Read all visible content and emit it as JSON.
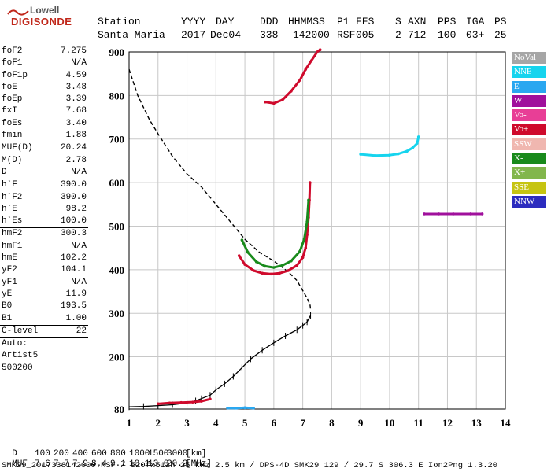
{
  "logo": {
    "top": "Lowell",
    "bottom": "DIGISONDE"
  },
  "header": {
    "labels": [
      "Station",
      "YYYY",
      "DAY",
      "DDD",
      "HHMMSS",
      "P1",
      "FFS",
      "S",
      "AXN",
      "PPS",
      "IGA",
      "PS"
    ],
    "values": [
      "Santa Maria",
      "2017",
      "Dec04",
      "338",
      "142000",
      "RSF",
      "005",
      "2",
      "712",
      "100",
      "03+",
      "25"
    ]
  },
  "params": {
    "group1": [
      [
        "foF2",
        "7.275"
      ],
      [
        "foF1",
        "N/A"
      ],
      [
        "foF1p",
        "4.59"
      ],
      [
        "foE",
        "3.48"
      ],
      [
        "foEp",
        "3.39"
      ],
      [
        "fxI",
        "7.68"
      ],
      [
        "foEs",
        "3.40"
      ],
      [
        "fmin",
        "1.88"
      ]
    ],
    "group2": [
      [
        "MUF(D)",
        "20.24"
      ],
      [
        "M(D)",
        "2.78"
      ],
      [
        "D",
        "N/A"
      ]
    ],
    "group3": [
      [
        "h`F",
        "390.0"
      ],
      [
        "h`F2",
        "390.0"
      ],
      [
        "h`E",
        "98.2"
      ],
      [
        "h`Es",
        "100.0"
      ]
    ],
    "group4": [
      [
        "hmF2",
        "300.3"
      ],
      [
        "hmF1",
        "N/A"
      ],
      [
        "hmE",
        "102.2"
      ],
      [
        "yF2",
        "104.1"
      ],
      [
        "yF1",
        "N/A"
      ],
      [
        "yE",
        "11.9"
      ],
      [
        "B0",
        "193.5"
      ],
      [
        "B1",
        "1.00"
      ]
    ],
    "clevel": [
      "C-level",
      "22"
    ],
    "auto": [
      "Auto:",
      "Artist5",
      "500200"
    ]
  },
  "legend": [
    {
      "label": "NoVal",
      "color": "#a6a6a6"
    },
    {
      "label": "NNE",
      "color": "#16d4ee"
    },
    {
      "label": "E",
      "color": "#2aa7f0"
    },
    {
      "label": "W",
      "color": "#a0109c"
    },
    {
      "label": "Vo-",
      "color": "#e83e96"
    },
    {
      "label": "Vo+",
      "color": "#cf0a2c"
    },
    {
      "label": "SSW",
      "color": "#f0b7b0"
    },
    {
      "label": "X-",
      "color": "#188a1b"
    },
    {
      "label": "X+",
      "color": "#82b64c"
    },
    {
      "label": "SSE",
      "color": "#c6c411"
    },
    {
      "label": "NNW",
      "color": "#2c2cbf"
    }
  ],
  "footer": {
    "row1_label": "D",
    "row1_values": [
      "100",
      "200",
      "400",
      "600",
      "800",
      "1000",
      "1500",
      "3000",
      "[km]"
    ],
    "row2_label": "MUF",
    "row2_values": [
      "7.6",
      "7.7",
      "7.9",
      "8.4",
      "9.1",
      "10.1",
      "13.0",
      "20.2",
      "[MHz]"
    ],
    "info": "SMK29_2017338142000.RSF / 520fx512h 25 kHz 2.5 km / DPS-4D SMK29 129 / 29.7 S 306.3 E Ion2Png 1.3.20"
  },
  "chart_data": {
    "type": "scatter",
    "xlim": [
      1,
      14
    ],
    "ylim": [
      80,
      900
    ],
    "xticks": [
      1,
      2,
      3,
      4,
      5,
      6,
      7,
      8,
      9,
      10,
      11,
      12,
      13,
      14
    ],
    "yticks": [
      80,
      200,
      300,
      400,
      500,
      600,
      700,
      800,
      900
    ],
    "ytick_labels": [
      "80",
      "200",
      "300",
      "400",
      "500",
      "600",
      "700",
      "800",
      "900"
    ],
    "grid": true,
    "series": [
      {
        "color": "#000000",
        "style": "dashed",
        "x": [
          1.0,
          1.3,
          1.7,
          2.0,
          2.5,
          3.0,
          3.5,
          4.0,
          4.5,
          5.0,
          5.5,
          6.0,
          6.5,
          6.8,
          7.0,
          7.15,
          7.25,
          7.27
        ],
        "y": [
          860,
          800,
          745,
          712,
          660,
          620,
          590,
          550,
          510,
          470,
          440,
          420,
          395,
          375,
          352,
          335,
          320,
          310
        ]
      },
      {
        "color": "#000000",
        "style": "solid-ticks",
        "x": [
          1.0,
          1.5,
          2.0,
          2.5,
          3.0,
          3.3,
          3.5,
          3.8,
          4.0,
          4.3,
          4.6,
          4.9,
          5.2,
          5.6,
          6.0,
          6.4,
          6.8,
          7.0,
          7.15,
          7.27
        ],
        "y": [
          85,
          86,
          88,
          90,
          94,
          99,
          104,
          112,
          124,
          138,
          155,
          175,
          195,
          215,
          232,
          248,
          262,
          272,
          280,
          295
        ]
      },
      {
        "color": "#cf0a2c",
        "style": "trace",
        "x": [
          4.8,
          5.0,
          5.3,
          5.6,
          5.9,
          6.2,
          6.5,
          6.8,
          7.0,
          7.1,
          7.15,
          7.2,
          7.23,
          7.25
        ],
        "y": [
          432,
          412,
          398,
          392,
          390,
          392,
          398,
          410,
          428,
          450,
          480,
          520,
          560,
          600
        ]
      },
      {
        "color": "#188a1b",
        "style": "trace",
        "x": [
          4.9,
          5.1,
          5.4,
          5.7,
          6.0,
          6.3,
          6.6,
          6.9,
          7.05,
          7.15,
          7.2
        ],
        "y": [
          468,
          440,
          418,
          408,
          405,
          410,
          420,
          442,
          470,
          510,
          560
        ]
      },
      {
        "color": "#cf0a2c",
        "style": "trace",
        "x": [
          5.7,
          6.0,
          6.3,
          6.6,
          6.9,
          7.1,
          7.3,
          7.5,
          7.6
        ],
        "y": [
          785,
          782,
          790,
          810,
          835,
          860,
          880,
          900,
          905
        ]
      },
      {
        "color": "#16d4ee",
        "style": "trace",
        "x": [
          9.0,
          9.5,
          10.0,
          10.3,
          10.6,
          10.8,
          10.95,
          11.0
        ],
        "y": [
          665,
          662,
          663,
          666,
          672,
          680,
          690,
          705
        ]
      },
      {
        "color": "#cf0a2c",
        "style": "trace",
        "x": [
          2.0,
          2.4,
          2.8,
          3.2,
          3.5,
          3.8
        ],
        "y": [
          92,
          94,
          95,
          96,
          98,
          103
        ]
      },
      {
        "color": "#a0109c",
        "style": "trace",
        "x": [
          11.2,
          11.7,
          12.2,
          12.8,
          13.2
        ],
        "y": [
          528,
          528,
          528,
          528,
          528
        ]
      },
      {
        "color": "#2aa7f0",
        "style": "trace",
        "x": [
          4.4,
          4.7,
          5.0,
          5.3
        ],
        "y": [
          82,
          82,
          83,
          82
        ]
      }
    ]
  }
}
